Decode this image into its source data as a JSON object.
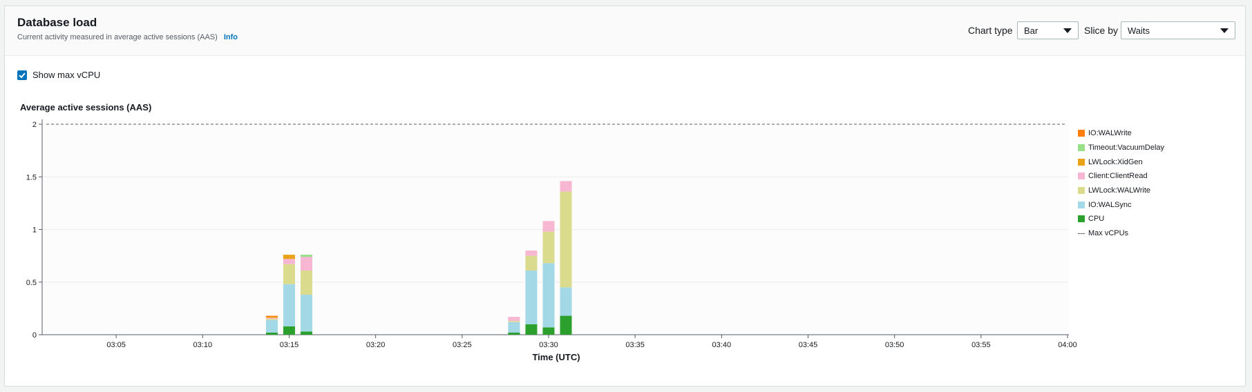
{
  "header": {
    "title": "Database load",
    "subtitle": "Current activity measured in average active sessions (AAS)",
    "info_link": "Info",
    "chart_type_label": "Chart type",
    "chart_type_value": "Bar",
    "slice_by_label": "Slice by",
    "slice_by_value": "Waits"
  },
  "options": {
    "show_max_vcpu_label": "Show max vCPU",
    "show_max_vcpu_checked": true
  },
  "icons": {
    "checkbox": "checkmark-icon",
    "dropdown": "caret-down-icon"
  },
  "colors": {
    "accent": "#0073bb",
    "max_vcpu_line": "#545b64"
  },
  "chart_data": {
    "type": "bar",
    "stacked": true,
    "title": "Average active sessions (AAS)",
    "xlabel": "Time (UTC)",
    "ylabel": "",
    "ylim": [
      0,
      2
    ],
    "yticks": [
      0,
      0.5,
      1,
      1.5,
      2
    ],
    "ytick_labels": [
      "0",
      "0.5",
      "1",
      "1.5",
      "2"
    ],
    "xlim": [
      "03:01",
      "04:00"
    ],
    "xticks": [
      "03:05",
      "03:10",
      "03:15",
      "03:20",
      "03:25",
      "03:30",
      "03:35",
      "03:40",
      "03:45",
      "03:50",
      "03:55",
      "04:00"
    ],
    "categories": [
      "03:14",
      "03:15",
      "03:16",
      "03:28",
      "03:29",
      "03:30",
      "03:31"
    ],
    "series": [
      {
        "name": "CPU",
        "color": "#2ca02c",
        "values": [
          0.02,
          0.08,
          0.03,
          0.02,
          0.1,
          0.07,
          0.18
        ]
      },
      {
        "name": "IO:WALSync",
        "color": "#a3d8e6",
        "values": [
          0.12,
          0.4,
          0.35,
          0.1,
          0.51,
          0.61,
          0.27
        ]
      },
      {
        "name": "LWLock:WALWrite",
        "color": "#dbdb8d",
        "values": [
          0.01,
          0.19,
          0.23,
          0.01,
          0.14,
          0.3,
          0.91
        ]
      },
      {
        "name": "Client:ClientRead",
        "color": "#f7b6d2",
        "values": [
          0.01,
          0.05,
          0.13,
          0.04,
          0.05,
          0.1,
          0.1
        ]
      },
      {
        "name": "LWLock:XidGen",
        "color": "#e8a317",
        "values": [
          0.01,
          0.04,
          0.0,
          0.0,
          0.0,
          0.0,
          0.0
        ]
      },
      {
        "name": "Timeout:VacuumDelay",
        "color": "#98df8a",
        "values": [
          0.0,
          0.0,
          0.02,
          0.0,
          0.0,
          0.0,
          0.0
        ]
      },
      {
        "name": "IO:WALWrite",
        "color": "#ff7f0e",
        "values": [
          0.01,
          0.0,
          0.0,
          0.0,
          0.0,
          0.0,
          0.0
        ]
      }
    ],
    "max_vcpu": {
      "name": "Max vCPUs",
      "value": 2
    },
    "legend": [
      "IO:WALWrite",
      "Timeout:VacuumDelay",
      "LWLock:XidGen",
      "Client:ClientRead",
      "LWLock:WALWrite",
      "IO:WALSync",
      "CPU"
    ],
    "legend_position": "right",
    "grid": true
  }
}
